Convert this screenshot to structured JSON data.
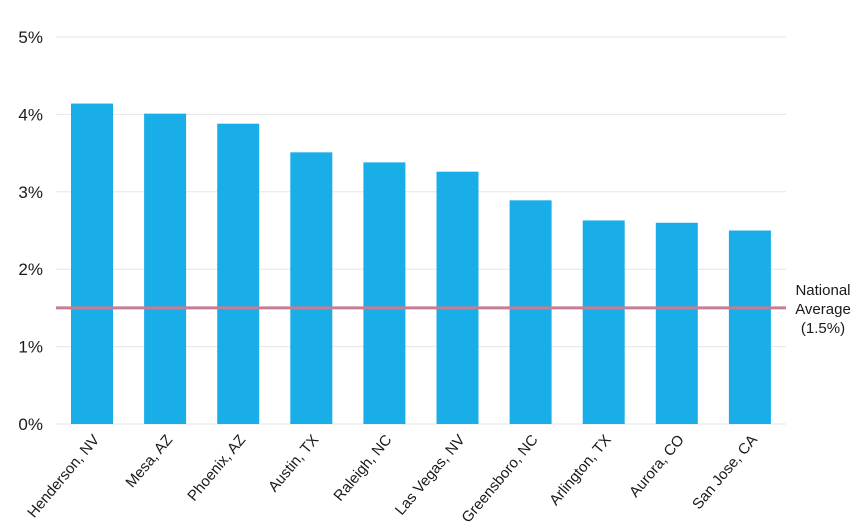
{
  "chart_data": {
    "type": "bar",
    "title": "",
    "xlabel": "",
    "ylabel": "",
    "categories": [
      "Henderson, NV",
      "Mesa, AZ",
      "Phoenix, AZ",
      "Austin, TX",
      "Raleigh, NC",
      "Las Vegas, NV",
      "Greensboro, NC",
      "Arlington, TX",
      "Aurora, CO",
      "San Jose, CA"
    ],
    "values": [
      4.14,
      4.01,
      3.88,
      3.51,
      3.38,
      3.26,
      2.89,
      2.63,
      2.6,
      2.5
    ],
    "ylim": [
      0,
      5
    ],
    "yticks": [
      0,
      1,
      2,
      3,
      4,
      5
    ],
    "ytick_labels": [
      "0%",
      "1%",
      "2%",
      "3%",
      "4%",
      "5%"
    ],
    "grid": true,
    "bar_color": "#1aaee8",
    "reference_line": {
      "value": 1.5,
      "color": "#c77d93",
      "label_lines": [
        "National",
        "Average",
        "(1.5%)"
      ]
    }
  }
}
